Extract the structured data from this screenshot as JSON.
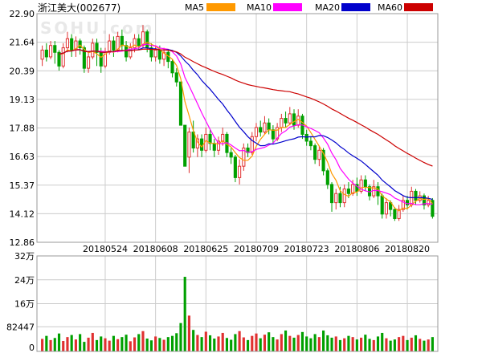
{
  "header": {
    "title": "浙江美大(002677)",
    "legend": [
      {
        "label": "MA5",
        "color": "#ff9900"
      },
      {
        "label": "MA10",
        "color": "#ff00ff"
      },
      {
        "label": "MA20",
        "color": "#0000cc"
      },
      {
        "label": "MA60",
        "color": "#cc0000"
      }
    ]
  },
  "watermark": "SOHU.com",
  "colors": {
    "up": "#e03030",
    "down": "#00a000",
    "grid": "#cccccc",
    "border": "#999999"
  },
  "chart_data": {
    "type": "candlestick",
    "price_axis": {
      "ylim": [
        12.86,
        22.9
      ],
      "ticks": [
        "22.90",
        "21.64",
        "20.39",
        "19.13",
        "17.88",
        "16.63",
        "15.37",
        "14.12",
        "12.86"
      ]
    },
    "date_labels": [
      {
        "index": 15,
        "label": "20180524"
      },
      {
        "index": 27,
        "label": "20180608"
      },
      {
        "index": 39,
        "label": "20180625"
      },
      {
        "index": 51,
        "label": "20180709"
      },
      {
        "index": 63,
        "label": "20180723"
      },
      {
        "index": 75,
        "label": "20180806"
      },
      {
        "index": 87,
        "label": "20180820"
      }
    ],
    "candles": [
      [
        20.9,
        21.3,
        21.5,
        20.6
      ],
      [
        21.3,
        21.0,
        21.6,
        20.8
      ],
      [
        21.0,
        21.5,
        21.7,
        20.9
      ],
      [
        21.5,
        21.2,
        21.7,
        20.7
      ],
      [
        21.2,
        20.6,
        21.3,
        20.4
      ],
      [
        20.6,
        21.4,
        21.6,
        20.5
      ],
      [
        21.4,
        21.8,
        22.1,
        21.2
      ],
      [
        21.8,
        21.3,
        22.0,
        21.0
      ],
      [
        21.3,
        21.7,
        21.9,
        21.0
      ],
      [
        21.7,
        21.4,
        21.8,
        21.1
      ],
      [
        21.4,
        20.5,
        21.5,
        20.3
      ],
      [
        20.5,
        21.0,
        21.2,
        20.3
      ],
      [
        21.0,
        21.6,
        21.8,
        20.9
      ],
      [
        21.6,
        21.2,
        21.8,
        20.6
      ],
      [
        21.2,
        20.6,
        21.4,
        20.3
      ],
      [
        20.6,
        21.2,
        21.4,
        20.5
      ],
      [
        21.2,
        21.7,
        22.0,
        21.1
      ],
      [
        21.7,
        21.3,
        21.9,
        21.0
      ],
      [
        21.3,
        21.9,
        22.1,
        21.2
      ],
      [
        21.9,
        21.5,
        22.2,
        21.3
      ],
      [
        21.5,
        21.0,
        21.7,
        20.8
      ],
      [
        21.0,
        21.4,
        21.6,
        20.9
      ],
      [
        21.4,
        21.8,
        22.0,
        21.2
      ],
      [
        21.8,
        21.5,
        22.0,
        21.3
      ],
      [
        21.5,
        22.1,
        22.4,
        21.4
      ],
      [
        22.1,
        21.4,
        22.2,
        21.2
      ],
      [
        21.4,
        21.0,
        21.6,
        20.8
      ],
      [
        21.0,
        21.3,
        21.5,
        20.8
      ],
      [
        21.3,
        20.9,
        21.5,
        20.7
      ],
      [
        20.9,
        21.2,
        21.4,
        20.6
      ],
      [
        21.2,
        20.8,
        21.3,
        20.5
      ],
      [
        20.8,
        20.3,
        20.9,
        20.1
      ],
      [
        20.3,
        19.9,
        20.5,
        19.7
      ],
      [
        19.9,
        18.0,
        19.9,
        18.0
      ],
      [
        18.0,
        16.2,
        18.0,
        16.2
      ],
      [
        16.6,
        17.7,
        17.9,
        15.9
      ],
      [
        17.7,
        17.0,
        18.2,
        16.8
      ],
      [
        17.0,
        17.4,
        17.6,
        16.6
      ],
      [
        17.4,
        16.9,
        17.6,
        16.6
      ],
      [
        16.9,
        17.6,
        17.9,
        16.8
      ],
      [
        17.6,
        17.2,
        17.8,
        16.9
      ],
      [
        17.2,
        16.9,
        17.4,
        16.6
      ],
      [
        16.9,
        17.3,
        17.5,
        16.7
      ],
      [
        17.3,
        17.6,
        17.9,
        17.1
      ],
      [
        17.6,
        16.8,
        17.7,
        16.6
      ],
      [
        16.8,
        16.6,
        17.0,
        16.3
      ],
      [
        16.6,
        15.7,
        16.7,
        15.5
      ],
      [
        15.7,
        16.2,
        16.5,
        15.4
      ],
      [
        16.2,
        17.0,
        17.2,
        16.0
      ],
      [
        17.0,
        16.8,
        17.2,
        16.6
      ],
      [
        16.8,
        17.5,
        17.7,
        16.7
      ],
      [
        17.5,
        17.9,
        18.1,
        17.3
      ],
      [
        17.9,
        17.7,
        18.2,
        17.5
      ],
      [
        17.7,
        18.1,
        18.4,
        17.6
      ],
      [
        18.1,
        17.8,
        18.3,
        17.6
      ],
      [
        17.8,
        17.4,
        18.0,
        17.2
      ],
      [
        17.4,
        17.9,
        18.1,
        17.3
      ],
      [
        17.9,
        18.3,
        18.5,
        17.7
      ],
      [
        18.3,
        18.1,
        18.6,
        17.9
      ],
      [
        18.1,
        18.5,
        18.8,
        18.0
      ],
      [
        18.5,
        18.0,
        18.7,
        17.8
      ],
      [
        18.0,
        18.4,
        18.7,
        17.9
      ],
      [
        18.4,
        17.6,
        18.5,
        17.4
      ],
      [
        17.6,
        17.3,
        17.8,
        17.1
      ],
      [
        17.3,
        17.1,
        17.5,
        16.9
      ],
      [
        17.1,
        16.5,
        17.2,
        16.3
      ],
      [
        16.5,
        16.9,
        17.1,
        16.2
      ],
      [
        16.9,
        16.0,
        17.0,
        15.8
      ],
      [
        16.0,
        15.4,
        16.1,
        15.2
      ],
      [
        15.4,
        14.6,
        15.5,
        14.2
      ],
      [
        14.6,
        15.0,
        15.2,
        14.3
      ],
      [
        15.0,
        14.6,
        15.3,
        14.4
      ],
      [
        14.6,
        15.2,
        15.4,
        14.4
      ],
      [
        15.2,
        15.0,
        15.5,
        14.8
      ],
      [
        15.0,
        15.4,
        15.6,
        14.9
      ],
      [
        15.4,
        15.1,
        15.7,
        14.9
      ],
      [
        15.1,
        15.6,
        15.8,
        15.0
      ],
      [
        15.6,
        15.3,
        15.8,
        15.1
      ],
      [
        15.3,
        14.9,
        15.4,
        14.7
      ],
      [
        14.9,
        15.3,
        15.6,
        14.8
      ],
      [
        15.3,
        14.9,
        15.5,
        14.5
      ],
      [
        14.9,
        14.1,
        15.0,
        13.9
      ],
      [
        14.1,
        14.6,
        14.8,
        13.9
      ],
      [
        14.6,
        14.3,
        14.7,
        14.0
      ],
      [
        14.3,
        13.9,
        14.4,
        13.8
      ],
      [
        13.9,
        14.3,
        14.5,
        13.8
      ],
      [
        14.3,
        14.7,
        14.9,
        14.2
      ],
      [
        14.7,
        14.5,
        14.9,
        14.3
      ],
      [
        14.5,
        15.1,
        15.3,
        14.4
      ],
      [
        15.1,
        14.7,
        15.2,
        14.5
      ],
      [
        14.7,
        14.9,
        15.1,
        14.6
      ],
      [
        14.9,
        14.5,
        15.0,
        14.3
      ],
      [
        14.5,
        14.7,
        14.9,
        14.4
      ],
      [
        14.7,
        14.0,
        14.8,
        13.9
      ]
    ],
    "ma_series": [
      {
        "name": "MA5",
        "period": 5
      },
      {
        "name": "MA10",
        "period": 10
      },
      {
        "name": "MA20",
        "period": 20
      },
      {
        "name": "MA60",
        "period": 60
      }
    ],
    "volume_axis": {
      "ylim": [
        0,
        320000
      ],
      "ticks": [
        {
          "value": 320000,
          "label": "32万"
        },
        {
          "value": 240000,
          "label": "24万"
        },
        {
          "value": 160000,
          "label": "16万"
        },
        {
          "value": 82447,
          "label": "82447"
        },
        {
          "value": 0,
          "label": "0"
        }
      ]
    },
    "volumes": [
      42000,
      52000,
      38000,
      45000,
      60000,
      35000,
      48000,
      55000,
      40000,
      58000,
      32000,
      46000,
      62000,
      38000,
      50000,
      44000,
      36000,
      52000,
      41000,
      48000,
      56000,
      34000,
      47000,
      58000,
      68000,
      43000,
      37000,
      50000,
      45000,
      39000,
      48000,
      52000,
      61000,
      95000,
      250000,
      120000,
      72000,
      55000,
      48000,
      66000,
      54000,
      43000,
      50000,
      62000,
      45000,
      39000,
      58000,
      68000,
      47000,
      38000,
      52000,
      60000,
      44000,
      56000,
      64000,
      48000,
      40000,
      58000,
      70000,
      52000,
      46000,
      55000,
      65000,
      50000,
      44000,
      58000,
      48000,
      70000,
      54000,
      46000,
      50000,
      38000,
      44000,
      52000,
      48000,
      40000,
      46000,
      56000,
      42000,
      38000,
      50000,
      62000,
      44000,
      36000,
      40000,
      48000,
      52000,
      38000,
      46000,
      54000,
      42000,
      36000,
      40000,
      48000
    ]
  }
}
